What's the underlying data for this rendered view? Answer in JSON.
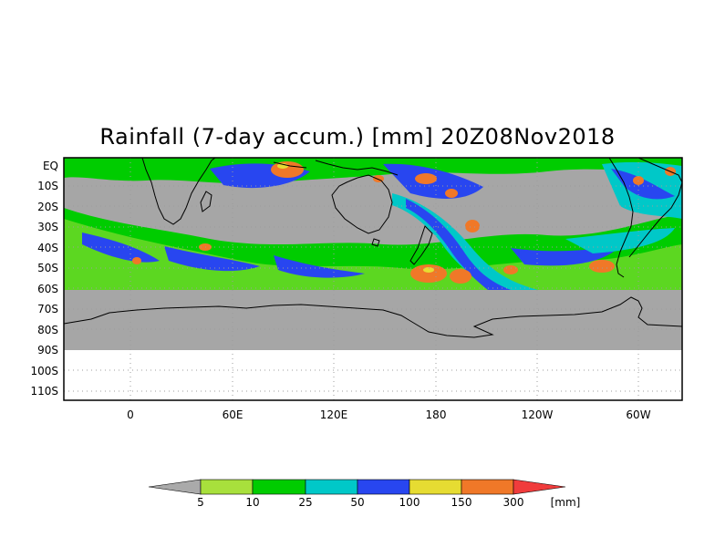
{
  "title": "Rainfall (7-day accum.) [mm] 20Z08Nov2018",
  "latitude_labels": [
    "EQ",
    "10S",
    "20S",
    "30S",
    "40S",
    "50S",
    "60S",
    "70S",
    "80S",
    "90S",
    "100S",
    "110S"
  ],
  "longitude_labels": [
    "0",
    "60E",
    "120E",
    "180",
    "120W",
    "60W"
  ],
  "colorbar": {
    "unit_label": "[mm]",
    "tick_labels": [
      "5",
      "10",
      "25",
      "50",
      "100",
      "150",
      "300"
    ],
    "colors": [
      "#aaaaaa",
      "#a8e03c",
      "#00cc00",
      "#00c8c8",
      "#2846f0",
      "#e6dc32",
      "#f07828",
      "#f03c3c"
    ]
  },
  "colors": {
    "no_data": "#a6a6a6",
    "grid": "#9c9c9c",
    "coast": "#000000"
  }
}
